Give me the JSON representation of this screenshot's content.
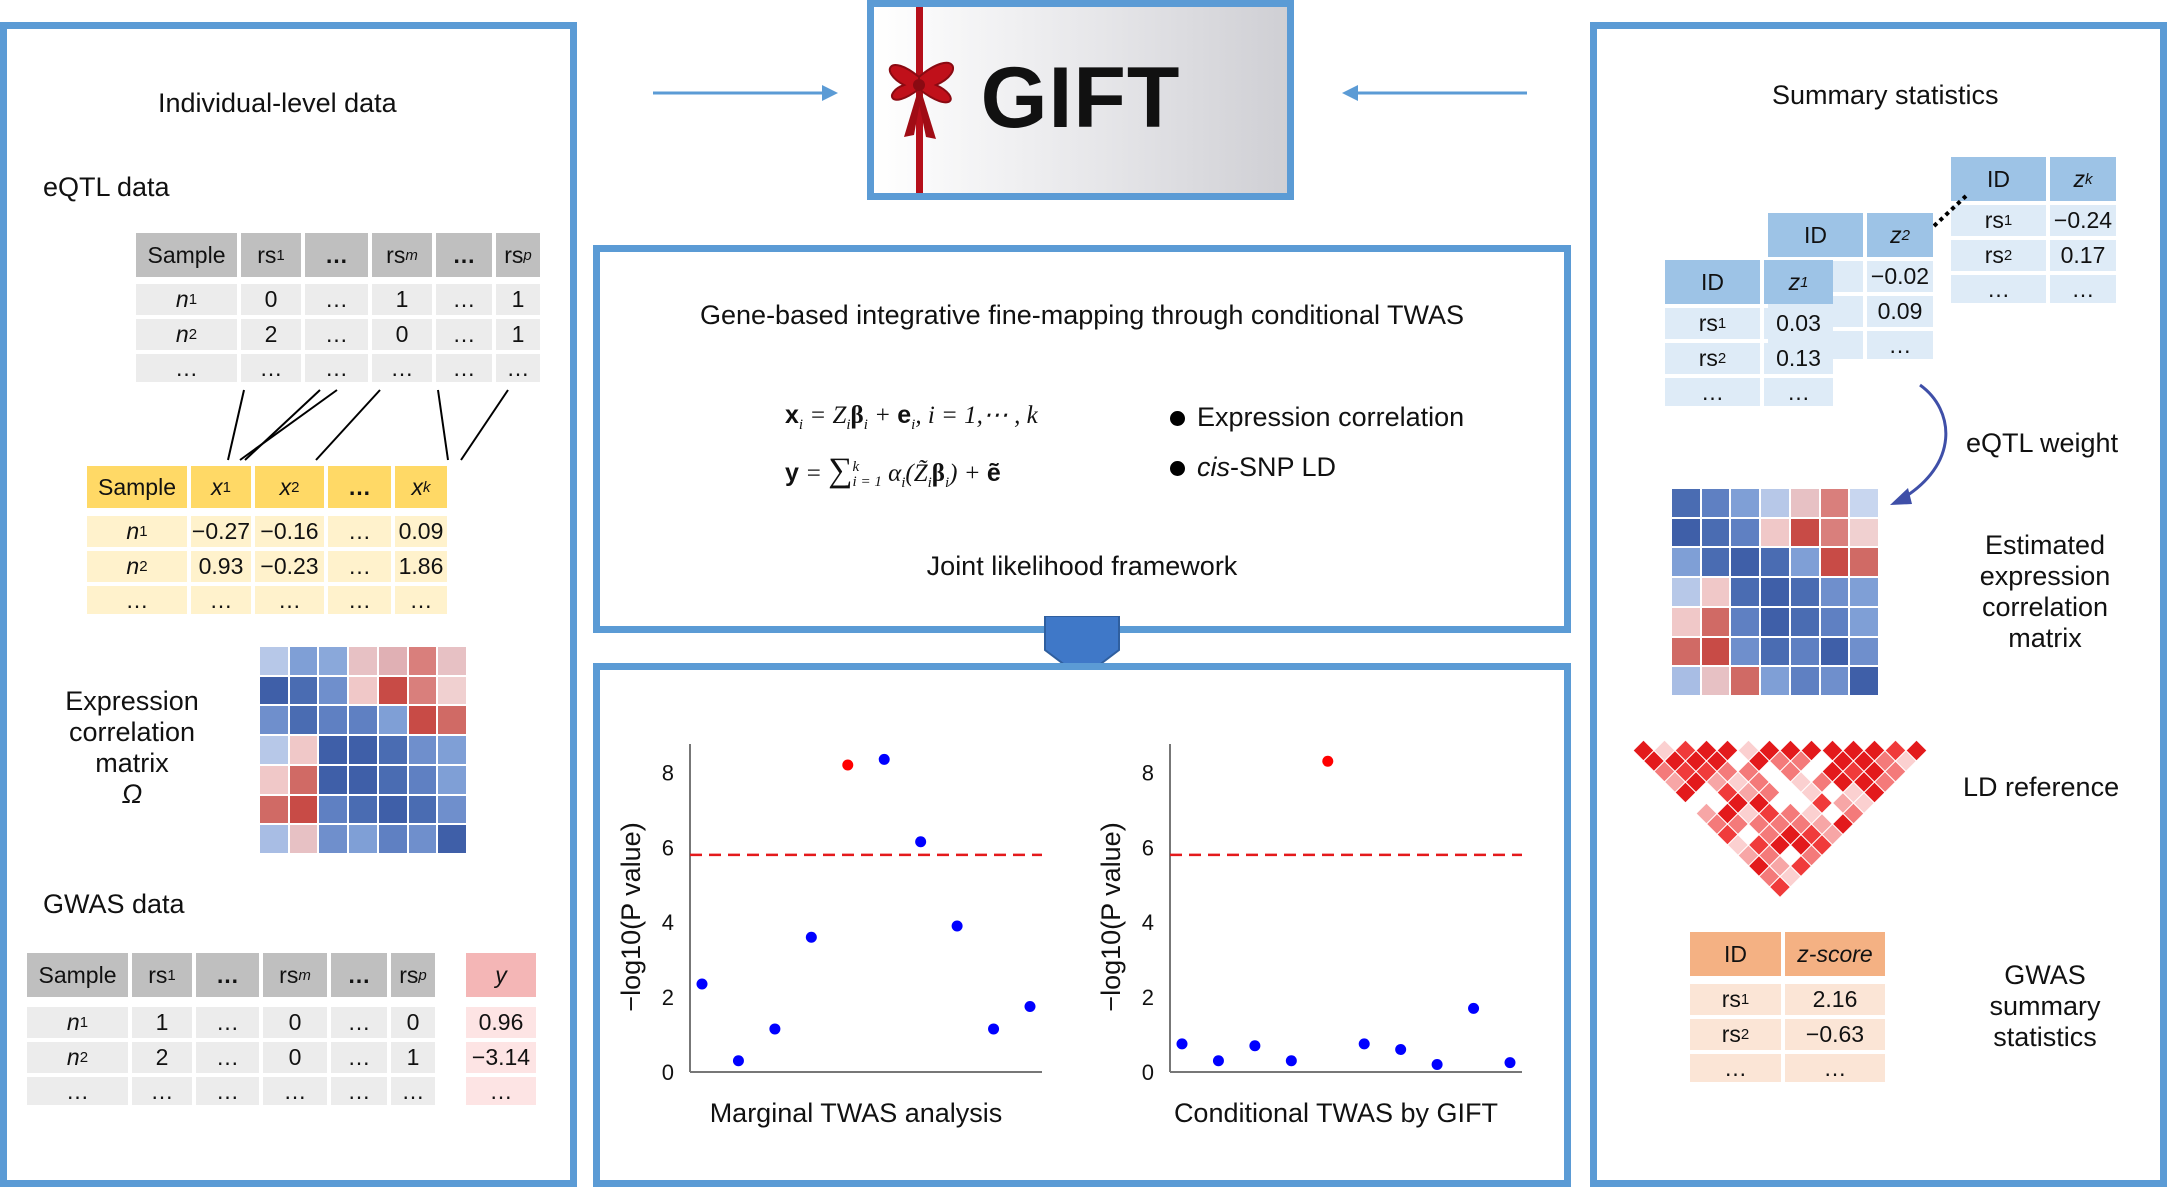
{
  "gift_title": "GIFT",
  "left": {
    "title": "Individual-level data",
    "eqtl": {
      "title": "eQTL data",
      "headers": [
        "Sample",
        "rs",
        "…",
        "rs",
        "…",
        "rs"
      ],
      "header_subs": [
        "",
        "1",
        "",
        "m",
        "",
        "p"
      ],
      "rows": [
        {
          "s": "n",
          "sub": "1",
          "v": [
            "0",
            "…",
            "1",
            "…",
            "1"
          ]
        },
        {
          "s": "n",
          "sub": "2",
          "v": [
            "2",
            "…",
            "0",
            "…",
            "1"
          ]
        },
        {
          "s": "…",
          "sub": "",
          "v": [
            "…",
            "…",
            "…",
            "…",
            "…"
          ]
        }
      ]
    },
    "expr": {
      "headers": [
        "Sample",
        "x",
        "x",
        "…",
        "x"
      ],
      "header_subs": [
        "",
        "1",
        "2",
        "",
        "k"
      ],
      "rows": [
        {
          "s": "n",
          "sub": "1",
          "v": [
            "−0.27",
            "−0.16",
            "…",
            "0.09"
          ]
        },
        {
          "s": "n",
          "sub": "2",
          "v": [
            "0.93",
            "−0.23",
            "…",
            "1.86"
          ]
        },
        {
          "s": "…",
          "sub": "",
          "v": [
            "…",
            "…",
            "…",
            "…"
          ]
        }
      ]
    },
    "corr_label": [
      "Expression",
      "correlation",
      "matrix",
      "Ω"
    ],
    "gwas": {
      "title": "GWAS data",
      "headers": [
        "Sample",
        "rs",
        "…",
        "rs",
        "…",
        "rs"
      ],
      "header_subs": [
        "",
        "1",
        "",
        "m",
        "",
        "p"
      ],
      "rows": [
        {
          "s": "n",
          "sub": "1",
          "v": [
            "1",
            "…",
            "0",
            "…",
            "0"
          ]
        },
        {
          "s": "n",
          "sub": "2",
          "v": [
            "2",
            "…",
            "0",
            "…",
            "1"
          ]
        },
        {
          "s": "…",
          "sub": "",
          "v": [
            "…",
            "…",
            "…",
            "…",
            "…"
          ]
        }
      ],
      "y_header": "y",
      "y_values": [
        "0.96",
        "−3.14",
        "…"
      ]
    }
  },
  "center": {
    "method_title": "Gene-based integrative fine-mapping through conditional TWAS",
    "bullets": [
      "Expression correlation",
      "-SNP LD"
    ],
    "bullet2_italic": "cis",
    "framework": "Joint likelihood framework"
  },
  "chart_data": [
    {
      "type": "scatter",
      "title": "Marginal TWAS analysis",
      "ylabel": "−log10(P value)",
      "yticks": [
        0,
        2,
        4,
        6,
        8
      ],
      "ylim": [
        0,
        8.6
      ],
      "threshold": 5.8,
      "points": [
        {
          "x": 1,
          "y": 2.35,
          "color": "#0000ff"
        },
        {
          "x": 2,
          "y": 0.3,
          "color": "#0000ff"
        },
        {
          "x": 3,
          "y": 1.15,
          "color": "#0000ff"
        },
        {
          "x": 4,
          "y": 3.6,
          "color": "#0000ff"
        },
        {
          "x": 5,
          "y": 8.2,
          "color": "#ff0000"
        },
        {
          "x": 6,
          "y": 8.35,
          "color": "#0000ff"
        },
        {
          "x": 7,
          "y": 6.15,
          "color": "#0000ff"
        },
        {
          "x": 8,
          "y": 3.9,
          "color": "#0000ff"
        },
        {
          "x": 9,
          "y": 1.15,
          "color": "#0000ff"
        },
        {
          "x": 10,
          "y": 1.75,
          "color": "#0000ff"
        }
      ]
    },
    {
      "type": "scatter",
      "title": "Conditional TWAS by GIFT",
      "ylabel": "−log10(P value)",
      "yticks": [
        0,
        2,
        4,
        6,
        8
      ],
      "ylim": [
        0,
        8.6
      ],
      "threshold": 5.8,
      "points": [
        {
          "x": 1,
          "y": 0.75,
          "color": "#0000ff"
        },
        {
          "x": 2,
          "y": 0.3,
          "color": "#0000ff"
        },
        {
          "x": 3,
          "y": 0.7,
          "color": "#0000ff"
        },
        {
          "x": 4,
          "y": 0.3,
          "color": "#0000ff"
        },
        {
          "x": 5,
          "y": 8.3,
          "color": "#ff0000"
        },
        {
          "x": 6,
          "y": 0.75,
          "color": "#0000ff"
        },
        {
          "x": 7,
          "y": 0.6,
          "color": "#0000ff"
        },
        {
          "x": 8,
          "y": 0.2,
          "color": "#0000ff"
        },
        {
          "x": 9,
          "y": 1.7,
          "color": "#0000ff"
        },
        {
          "x": 10,
          "y": 0.25,
          "color": "#0000ff"
        }
      ]
    }
  ],
  "right": {
    "title": "Summary statistics",
    "z_tables": [
      {
        "h": [
          "ID",
          "z"
        ],
        "sub": "1",
        "rows": [
          [
            "rs",
            "1",
            "0.03"
          ],
          [
            "rs",
            "2",
            "0.13"
          ],
          [
            "…",
            "",
            "…"
          ]
        ]
      },
      {
        "h": [
          "ID",
          "z"
        ],
        "sub": "2",
        "rows": [
          [
            "",
            "",
            "−0.02"
          ],
          [
            "",
            "",
            "0.09"
          ],
          [
            "",
            "",
            "…"
          ]
        ]
      },
      {
        "h": [
          "ID",
          "z"
        ],
        "sub": "k",
        "rows": [
          [
            "rs",
            "1",
            "−0.24"
          ],
          [
            "rs",
            "2",
            "0.17"
          ],
          [
            "…",
            "",
            "…"
          ]
        ]
      }
    ],
    "eqtl_weight": "eQTL weight",
    "est_label": [
      "Estimated",
      "expression",
      "correlation",
      "matrix"
    ],
    "ld_label": "LD reference",
    "gwas_table": {
      "h": [
        "ID",
        "z-score"
      ],
      "rows": [
        [
          "rs",
          "1",
          "2.16"
        ],
        [
          "rs",
          "2",
          "−0.63"
        ],
        [
          "…",
          "",
          "…"
        ]
      ]
    },
    "gwas_label": [
      "GWAS",
      "summary",
      "statistics"
    ]
  },
  "colors": {
    "panel_border": "#5b9bd5",
    "ribbon": "#c0101a",
    "threshold": "#e41a1c"
  }
}
